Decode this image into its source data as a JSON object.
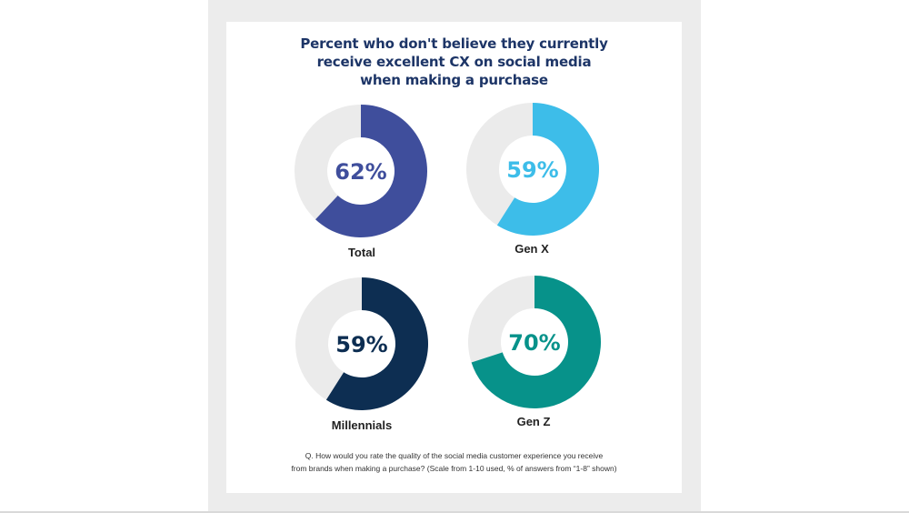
{
  "chart_data": {
    "type": "pie",
    "title_lines": [
      "Percent who don't believe they currently",
      "receive excellent CX on social media",
      "when making a purchase"
    ],
    "remainder_color": "#ebebeb",
    "charts": [
      {
        "category": "Total",
        "value": 62,
        "label": "62%",
        "color": "#3f4e9c"
      },
      {
        "category": "Gen X",
        "value": 59,
        "label": "59%",
        "color": "#3dbde9"
      },
      {
        "category": "Millennials",
        "value": 59,
        "label": "59%",
        "color": "#0d2e52"
      },
      {
        "category": "Gen Z",
        "value": 70,
        "label": "70%",
        "color": "#07928a"
      }
    ]
  },
  "footnote": {
    "line1": "Q. How would you rate the quality of the social media customer experience you receive",
    "line2": "from brands when making a purchase? (Scale from 1-10 used, % of answers from “1-8” shown)"
  }
}
